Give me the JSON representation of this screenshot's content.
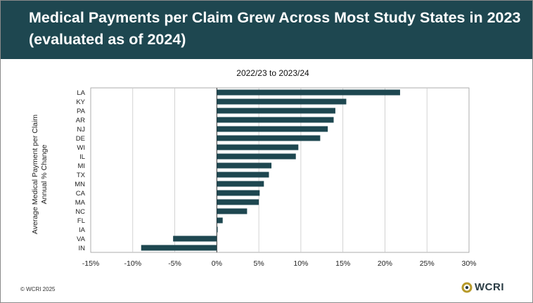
{
  "slide": {
    "title": "Medical Payments per Claim Grew Across Most Study States in 2023 (evaluated as of 2024)",
    "copyright": "© WCRI 2025",
    "logo_text": "WCRI"
  },
  "colors": {
    "title_band": "#1e4750",
    "bar": "#1e4750",
    "gridline": "#c8c8c8",
    "logo_accent": "#b79a2a"
  },
  "chart_data": {
    "type": "bar",
    "orientation": "horizontal",
    "title": "2022/23 to 2023/24",
    "ylabel": "Average Medical Payment per Claim\nAnnual % Change",
    "xlabel": "",
    "categories": [
      "LA",
      "KY",
      "PA",
      "AR",
      "NJ",
      "DE",
      "WI",
      "IL",
      "MI",
      "TX",
      "MN",
      "CA",
      "MA",
      "NC",
      "FL",
      "IA",
      "VA",
      "IN"
    ],
    "values": [
      21.8,
      15.4,
      14.1,
      13.9,
      13.2,
      12.3,
      9.7,
      9.4,
      6.5,
      6.2,
      5.6,
      5.1,
      5.0,
      3.6,
      0.7,
      0.1,
      -5.2,
      -9.0
    ],
    "xlim": [
      -15,
      30
    ],
    "xticks": [
      -15,
      -10,
      -5,
      0,
      5,
      10,
      15,
      20,
      25,
      30
    ],
    "xtick_labels": [
      "-15%",
      "-10%",
      "-5%",
      "0%",
      "5%",
      "10%",
      "15%",
      "20%",
      "25%",
      "30%"
    ],
    "grid": true,
    "legend": "none"
  }
}
